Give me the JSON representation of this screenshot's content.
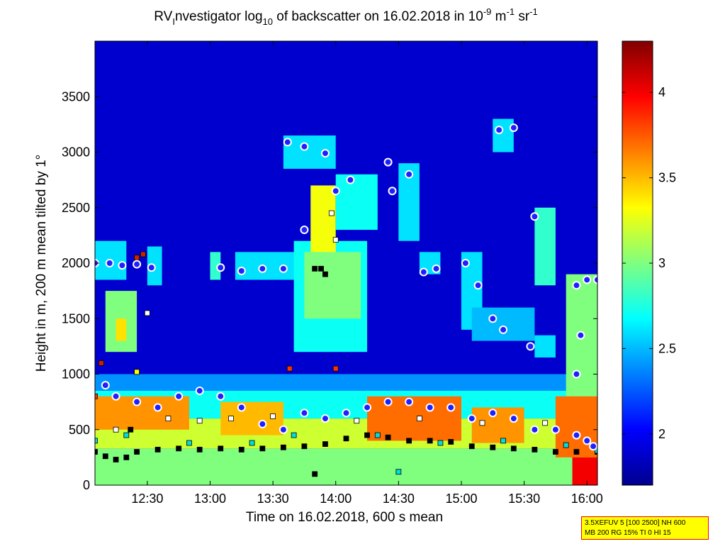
{
  "chart_data": {
    "type": "heatmap",
    "title": {
      "prefix": "RV",
      "prefix_sub": "I",
      "middle": "nvestigator log",
      "log_base": "10",
      "mid2": " of backscatter on 16.02.2018 in 10",
      "exp1": "-9",
      "unit_m": " m",
      "exp2": "-1",
      "unit_sr": " sr",
      "exp3": "-1"
    },
    "xlabel": "Time on 16.02.2018, 600 s mean",
    "ylabel": "Height in m, 200 m mean tilted by 1°",
    "x_range": [
      "12:05",
      "16:05"
    ],
    "ylim": [
      0,
      4000
    ],
    "x_ticks": [
      {
        "label": "12:30"
      },
      {
        "label": "13:00"
      },
      {
        "label": "13:30"
      },
      {
        "label": "14:00"
      },
      {
        "label": "14:30"
      },
      {
        "label": "15:00"
      },
      {
        "label": "15:30"
      },
      {
        "label": "16:00"
      }
    ],
    "y_ticks": [
      {
        "label": "0",
        "value": 0
      },
      {
        "label": "500",
        "value": 500
      },
      {
        "label": "1000",
        "value": 1000
      },
      {
        "label": "1500",
        "value": 1500
      },
      {
        "label": "2000",
        "value": 2000
      },
      {
        "label": "2500",
        "value": 2500
      },
      {
        "label": "3000",
        "value": 3000
      },
      {
        "label": "3500",
        "value": 3500
      }
    ],
    "colorbar": {
      "colormap": "jet",
      "range": [
        1.7,
        4.3
      ],
      "ticks": [
        {
          "label": "2",
          "value": 2
        },
        {
          "label": "2.5",
          "value": 2.5
        },
        {
          "label": "3",
          "value": 3
        },
        {
          "label": "3.5",
          "value": 3.5
        },
        {
          "label": "4",
          "value": 4
        }
      ]
    },
    "background_value": 1.9,
    "regions": [
      {
        "t": [
          "12:05",
          "16:05"
        ],
        "h": [
          0,
          330
        ],
        "v": 3.0
      },
      {
        "t": [
          "12:05",
          "16:05"
        ],
        "h": [
          330,
          600
        ],
        "v": 3.2
      },
      {
        "t": [
          "12:05",
          "16:05"
        ],
        "h": [
          600,
          850
        ],
        "v": 2.7
      },
      {
        "t": [
          "12:05",
          "16:05"
        ],
        "h": [
          850,
          1000
        ],
        "v": 2.4
      },
      {
        "t": [
          "12:05",
          "12:20"
        ],
        "h": [
          1850,
          2200
        ],
        "v": 2.6
      },
      {
        "t": [
          "12:10",
          "12:25"
        ],
        "h": [
          1200,
          1750
        ],
        "v": 3.0
      },
      {
        "t": [
          "12:15",
          "12:20"
        ],
        "h": [
          1300,
          1500
        ],
        "v": 3.4
      },
      {
        "t": [
          "12:30",
          "12:37"
        ],
        "h": [
          1800,
          2150
        ],
        "v": 2.6
      },
      {
        "t": [
          "13:00",
          "13:05"
        ],
        "h": [
          1850,
          2100
        ],
        "v": 2.8
      },
      {
        "t": [
          "13:12",
          "13:43"
        ],
        "h": [
          1850,
          2100
        ],
        "v": 2.6
      },
      {
        "t": [
          "13:40",
          "14:15"
        ],
        "h": [
          1200,
          2200
        ],
        "v": 2.7
      },
      {
        "t": [
          "13:45",
          "14:12"
        ],
        "h": [
          1500,
          2100
        ],
        "v": 3.0
      },
      {
        "t": [
          "13:48",
          "14:00"
        ],
        "h": [
          2100,
          2700
        ],
        "v": 3.3
      },
      {
        "t": [
          "13:35",
          "14:00"
        ],
        "h": [
          2850,
          3150
        ],
        "v": 2.6
      },
      {
        "t": [
          "14:00",
          "14:20"
        ],
        "h": [
          2300,
          2800
        ],
        "v": 2.7
      },
      {
        "t": [
          "14:30",
          "14:40"
        ],
        "h": [
          2200,
          2900
        ],
        "v": 2.6
      },
      {
        "t": [
          "14:40",
          "14:50"
        ],
        "h": [
          1900,
          2100
        ],
        "v": 2.6
      },
      {
        "t": [
          "15:00",
          "15:10"
        ],
        "h": [
          1400,
          2100
        ],
        "v": 2.6
      },
      {
        "t": [
          "15:05",
          "15:35"
        ],
        "h": [
          1300,
          1600
        ],
        "v": 2.5
      },
      {
        "t": [
          "15:15",
          "15:25"
        ],
        "h": [
          3000,
          3300
        ],
        "v": 2.6
      },
      {
        "t": [
          "15:35",
          "15:45"
        ],
        "h": [
          1800,
          2500
        ],
        "v": 2.8
      },
      {
        "t": [
          "15:35",
          "15:45"
        ],
        "h": [
          1150,
          1350
        ],
        "v": 2.6
      },
      {
        "t": [
          "15:50",
          "16:05"
        ],
        "h": [
          0,
          1900
        ],
        "v": 3.0
      },
      {
        "t": [
          "15:53",
          "16:05"
        ],
        "h": [
          0,
          250
        ],
        "v": 4.0
      },
      {
        "t": [
          "12:05",
          "12:50"
        ],
        "h": [
          500,
          800
        ],
        "v": 3.6
      },
      {
        "t": [
          "13:05",
          "13:35"
        ],
        "h": [
          450,
          750
        ],
        "v": 3.5
      },
      {
        "t": [
          "14:15",
          "15:00"
        ],
        "h": [
          400,
          800
        ],
        "v": 3.7
      },
      {
        "t": [
          "15:05",
          "15:30"
        ],
        "h": [
          380,
          700
        ],
        "v": 3.6
      },
      {
        "t": [
          "15:45",
          "16:05"
        ],
        "h": [
          250,
          800
        ],
        "v": 3.7
      }
    ],
    "cloud_base_markers": {
      "style": "blue dot with white outline",
      "points": [
        {
          "t": "12:05",
          "h": 2000
        },
        {
          "t": "12:12",
          "h": 2000
        },
        {
          "t": "12:18",
          "h": 1980
        },
        {
          "t": "12:25",
          "h": 1990
        },
        {
          "t": "12:32",
          "h": 1960
        },
        {
          "t": "13:05",
          "h": 1960
        },
        {
          "t": "13:15",
          "h": 1930
        },
        {
          "t": "13:25",
          "h": 1950
        },
        {
          "t": "13:35",
          "h": 1950
        },
        {
          "t": "13:37",
          "h": 3090
        },
        {
          "t": "13:45",
          "h": 3050
        },
        {
          "t": "13:55",
          "h": 2990
        },
        {
          "t": "13:45",
          "h": 2300
        },
        {
          "t": "14:00",
          "h": 2650
        },
        {
          "t": "14:07",
          "h": 2750
        },
        {
          "t": "14:25",
          "h": 2910
        },
        {
          "t": "14:27",
          "h": 2650
        },
        {
          "t": "14:35",
          "h": 2800
        },
        {
          "t": "14:42",
          "h": 1920
        },
        {
          "t": "14:48",
          "h": 1950
        },
        {
          "t": "15:02",
          "h": 2000
        },
        {
          "t": "15:08",
          "h": 1800
        },
        {
          "t": "15:15",
          "h": 1500
        },
        {
          "t": "15:20",
          "h": 1400
        },
        {
          "t": "15:18",
          "h": 3200
        },
        {
          "t": "15:25",
          "h": 3220
        },
        {
          "t": "15:35",
          "h": 2420
        },
        {
          "t": "15:33",
          "h": 1250
        },
        {
          "t": "15:55",
          "h": 1800
        },
        {
          "t": "16:00",
          "h": 1850
        },
        {
          "t": "16:05",
          "h": 1850
        },
        {
          "t": "15:57",
          "h": 1350
        },
        {
          "t": "15:55",
          "h": 1000
        },
        {
          "t": "12:10",
          "h": 900
        },
        {
          "t": "12:15",
          "h": 800
        },
        {
          "t": "12:25",
          "h": 750
        },
        {
          "t": "12:35",
          "h": 700
        },
        {
          "t": "12:45",
          "h": 800
        },
        {
          "t": "12:55",
          "h": 850
        },
        {
          "t": "13:05",
          "h": 800
        },
        {
          "t": "13:15",
          "h": 700
        },
        {
          "t": "13:25",
          "h": 550
        },
        {
          "t": "13:35",
          "h": 500
        },
        {
          "t": "13:45",
          "h": 650
        },
        {
          "t": "13:55",
          "h": 600
        },
        {
          "t": "14:05",
          "h": 650
        },
        {
          "t": "14:15",
          "h": 700
        },
        {
          "t": "14:25",
          "h": 750
        },
        {
          "t": "14:35",
          "h": 750
        },
        {
          "t": "14:45",
          "h": 700
        },
        {
          "t": "14:55",
          "h": 700
        },
        {
          "t": "15:05",
          "h": 600
        },
        {
          "t": "15:15",
          "h": 650
        },
        {
          "t": "15:25",
          "h": 600
        },
        {
          "t": "15:35",
          "h": 500
        },
        {
          "t": "15:45",
          "h": 500
        },
        {
          "t": "15:55",
          "h": 450
        },
        {
          "t": "16:00",
          "h": 400
        },
        {
          "t": "16:03",
          "h": 350
        }
      ]
    },
    "layer_markers": {
      "style": "small squares (black, white, cyan, red)",
      "points": [
        {
          "t": "12:05",
          "h": 300,
          "c": "#000000"
        },
        {
          "t": "12:10",
          "h": 260,
          "c": "#000000"
        },
        {
          "t": "12:15",
          "h": 230,
          "c": "#000000"
        },
        {
          "t": "12:20",
          "h": 250,
          "c": "#000000"
        },
        {
          "t": "12:25",
          "h": 300,
          "c": "#000000"
        },
        {
          "t": "12:35",
          "h": 320,
          "c": "#000000"
        },
        {
          "t": "12:45",
          "h": 330,
          "c": "#000000"
        },
        {
          "t": "12:55",
          "h": 320,
          "c": "#000000"
        },
        {
          "t": "13:05",
          "h": 330,
          "c": "#000000"
        },
        {
          "t": "13:15",
          "h": 320,
          "c": "#000000"
        },
        {
          "t": "13:25",
          "h": 330,
          "c": "#000000"
        },
        {
          "t": "13:35",
          "h": 340,
          "c": "#000000"
        },
        {
          "t": "13:45",
          "h": 350,
          "c": "#000000"
        },
        {
          "t": "13:55",
          "h": 370,
          "c": "#000000"
        },
        {
          "t": "14:05",
          "h": 420,
          "c": "#000000"
        },
        {
          "t": "14:15",
          "h": 450,
          "c": "#000000"
        },
        {
          "t": "14:25",
          "h": 430,
          "c": "#000000"
        },
        {
          "t": "14:35",
          "h": 400,
          "c": "#000000"
        },
        {
          "t": "14:45",
          "h": 400,
          "c": "#000000"
        },
        {
          "t": "14:55",
          "h": 390,
          "c": "#000000"
        },
        {
          "t": "15:05",
          "h": 350,
          "c": "#000000"
        },
        {
          "t": "15:15",
          "h": 340,
          "c": "#000000"
        },
        {
          "t": "15:25",
          "h": 330,
          "c": "#000000"
        },
        {
          "t": "15:35",
          "h": 320,
          "c": "#000000"
        },
        {
          "t": "15:45",
          "h": 300,
          "c": "#000000"
        },
        {
          "t": "15:55",
          "h": 300,
          "c": "#000000"
        },
        {
          "t": "16:05",
          "h": 300,
          "c": "#000000"
        },
        {
          "t": "12:22",
          "h": 500,
          "c": "#000000"
        },
        {
          "t": "13:50",
          "h": 1950,
          "c": "#000000"
        },
        {
          "t": "13:53",
          "h": 1950,
          "c": "#000000"
        },
        {
          "t": "13:55",
          "h": 1900,
          "c": "#000000"
        },
        {
          "t": "13:50",
          "h": 100,
          "c": "#000000"
        },
        {
          "t": "12:08",
          "h": 1100,
          "c": "#cc2200"
        },
        {
          "t": "12:25",
          "h": 2050,
          "c": "#cc2200"
        },
        {
          "t": "12:28",
          "h": 2080,
          "c": "#cc2200"
        },
        {
          "t": "12:05",
          "h": 800,
          "c": "#ff3300"
        },
        {
          "t": "13:38",
          "h": 1050,
          "c": "#ff3300"
        },
        {
          "t": "14:00",
          "h": 1050,
          "c": "#ff3300"
        },
        {
          "t": "12:25",
          "h": 1020,
          "c": "#ffff00"
        },
        {
          "t": "12:30",
          "h": 1550,
          "c": "#ffffff"
        },
        {
          "t": "13:58",
          "h": 2450,
          "c": "#ffffff"
        },
        {
          "t": "14:00",
          "h": 2210,
          "c": "#ffffff"
        },
        {
          "t": "12:15",
          "h": 500,
          "c": "#ffffff"
        },
        {
          "t": "12:40",
          "h": 600,
          "c": "#ffffff"
        },
        {
          "t": "12:55",
          "h": 580,
          "c": "#ffffff"
        },
        {
          "t": "13:10",
          "h": 600,
          "c": "#ffffff"
        },
        {
          "t": "13:30",
          "h": 620,
          "c": "#ffffff"
        },
        {
          "t": "14:10",
          "h": 580,
          "c": "#ffffff"
        },
        {
          "t": "14:40",
          "h": 600,
          "c": "#ffffff"
        },
        {
          "t": "15:10",
          "h": 560,
          "c": "#ffffff"
        },
        {
          "t": "15:40",
          "h": 560,
          "c": "#ffffff"
        },
        {
          "t": "12:05",
          "h": 400,
          "c": "#00dddd"
        },
        {
          "t": "12:20",
          "h": 450,
          "c": "#00dddd"
        },
        {
          "t": "12:50",
          "h": 380,
          "c": "#00dddd"
        },
        {
          "t": "13:20",
          "h": 380,
          "c": "#00dddd"
        },
        {
          "t": "13:40",
          "h": 450,
          "c": "#00dddd"
        },
        {
          "t": "14:20",
          "h": 450,
          "c": "#00dddd"
        },
        {
          "t": "14:30",
          "h": 120,
          "c": "#00dddd"
        },
        {
          "t": "14:50",
          "h": 380,
          "c": "#00dddd"
        },
        {
          "t": "15:20",
          "h": 400,
          "c": "#00dddd"
        },
        {
          "t": "15:50",
          "h": 360,
          "c": "#00dddd"
        },
        {
          "t": "16:05",
          "h": 310,
          "c": "#00dddd"
        }
      ]
    }
  },
  "info_box": {
    "line1": "3.5XEFUV 5 [100 2500] NH 600",
    "line2": "MB 200 RG 15% TI 0 HI 15"
  }
}
